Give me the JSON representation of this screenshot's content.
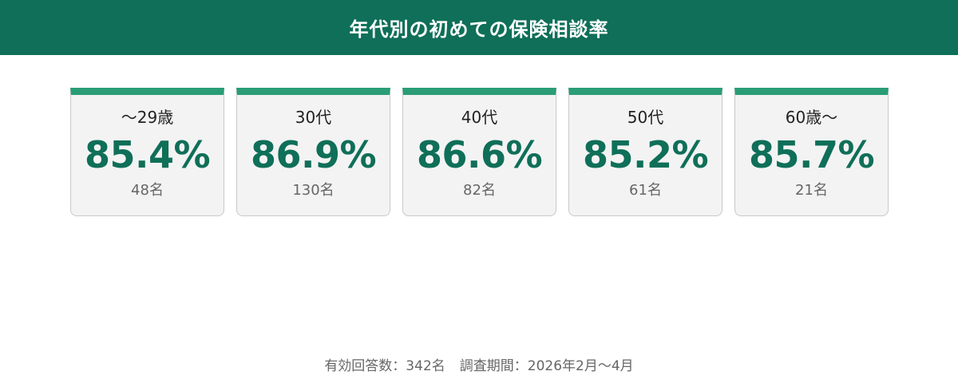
{
  "header": {
    "title": "年代別の初めての保険相談率"
  },
  "chart_data": {
    "type": "table",
    "title": "年代別の初めての保険相談率",
    "categories": [
      "〜29歳",
      "30代",
      "40代",
      "50代",
      "60歳〜"
    ],
    "values": [
      85.4,
      86.9,
      86.6,
      85.2,
      85.7
    ],
    "value_labels": [
      "85.4%",
      "86.9%",
      "86.6%",
      "85.2%",
      "85.7%"
    ],
    "counts": [
      "48名",
      "130名",
      "82名",
      "61名",
      "21名"
    ],
    "unit": "%"
  },
  "footer": {
    "respondents": "有効回答数：342名",
    "period": "調査期間：2026年2月〜4月"
  },
  "colors": {
    "header_bg": "#0f6f58",
    "card_accent": "#2a9d77",
    "value_text": "#0f6f58",
    "card_bg": "#f3f3f3"
  }
}
